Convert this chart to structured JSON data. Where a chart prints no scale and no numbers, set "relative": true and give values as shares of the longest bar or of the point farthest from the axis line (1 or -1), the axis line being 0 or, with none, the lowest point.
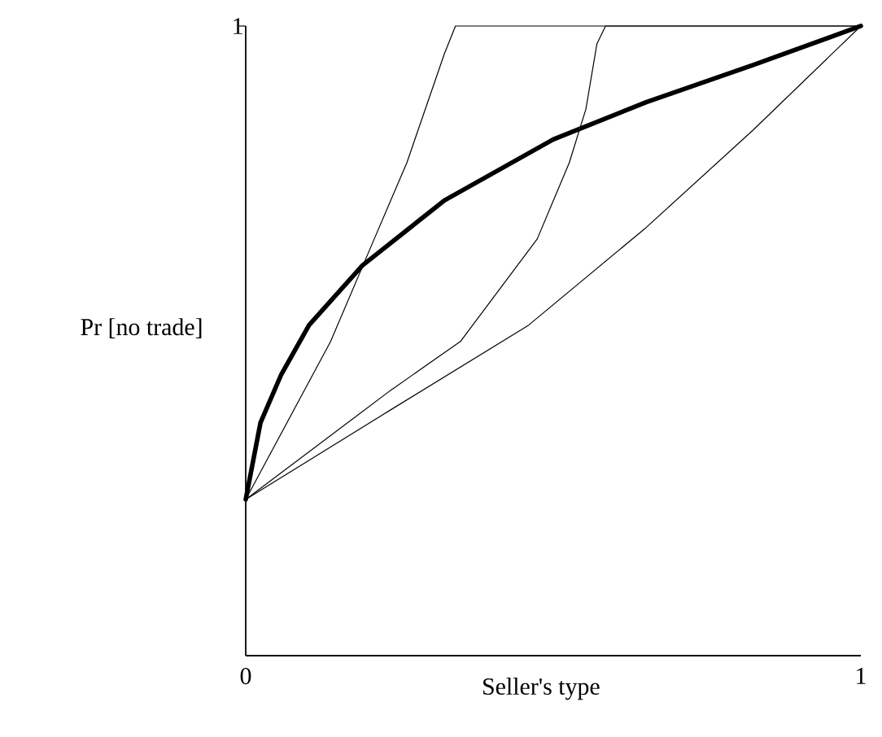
{
  "chart_data": {
    "type": "line",
    "xlabel": "Seller's type",
    "ylabel": "Pr [no trade]",
    "xlim": [
      0,
      1
    ],
    "xticks": [
      0,
      1
    ],
    "relative": true,
    "annotations": [
      "1"
    ],
    "line_style": "solid",
    "grid": false,
    "series": [
      {
        "color": "#000000",
        "x": [
          0,
          0.024,
          0.058,
          0.103,
          0.19,
          0.323,
          0.5,
          0.651,
          0.825,
          1
        ],
        "values": [
          0.248,
          0.37,
          0.447,
          0.525,
          0.62,
          0.723,
          0.82,
          0.879,
          0.938,
          1
        ]
      },
      {
        "color": "#000000",
        "x": [
          0,
          0.138,
          0.209,
          0.262,
          0.323,
          0.341,
          1
        ],
        "values": [
          0.248,
          0.499,
          0.662,
          0.783,
          0.956,
          1,
          1
        ]
      },
      {
        "color": "#000000",
        "x": [
          0,
          0.235,
          0.349,
          0.474,
          0.526,
          0.553,
          0.571,
          0.585,
          1
        ],
        "values": [
          0.248,
          0.421,
          0.499,
          0.662,
          0.783,
          0.868,
          0.972,
          1,
          1
        ]
      },
      {
        "color": "#000000",
        "x": [
          0,
          0.235,
          0.46,
          0.651,
          0.825,
          1
        ],
        "values": [
          0.248,
          0.39,
          0.525,
          0.68,
          0.835,
          1
        ]
      }
    ]
  }
}
